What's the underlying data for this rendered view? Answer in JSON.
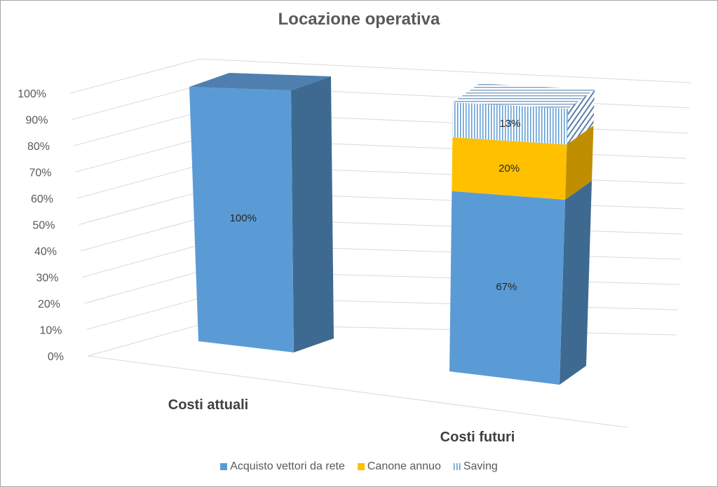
{
  "chart_data": {
    "type": "bar",
    "stacked": true,
    "three_d": true,
    "title": "Locazione operativa",
    "categories": [
      "Costi attuali",
      "Costi futuri"
    ],
    "series": [
      {
        "name": "Acquisto vettori da rete",
        "values": [
          100,
          67
        ],
        "color": "#5b9bd5",
        "labels": [
          "100%",
          "67%"
        ]
      },
      {
        "name": "Canone annuo",
        "values": [
          0,
          20
        ],
        "color": "#ffc000",
        "labels": [
          "",
          "20%"
        ]
      },
      {
        "name": "Saving",
        "values": [
          0,
          13
        ],
        "color": "#9dc3e6",
        "pattern": "vertical-lines",
        "labels": [
          "",
          "13%"
        ]
      }
    ],
    "y_ticks": [
      "0%",
      "10%",
      "20%",
      "30%",
      "40%",
      "50%",
      "60%",
      "70%",
      "80%",
      "90%",
      "100%"
    ],
    "ylim": [
      0,
      100
    ],
    "grid": true,
    "legend_position": "bottom"
  }
}
